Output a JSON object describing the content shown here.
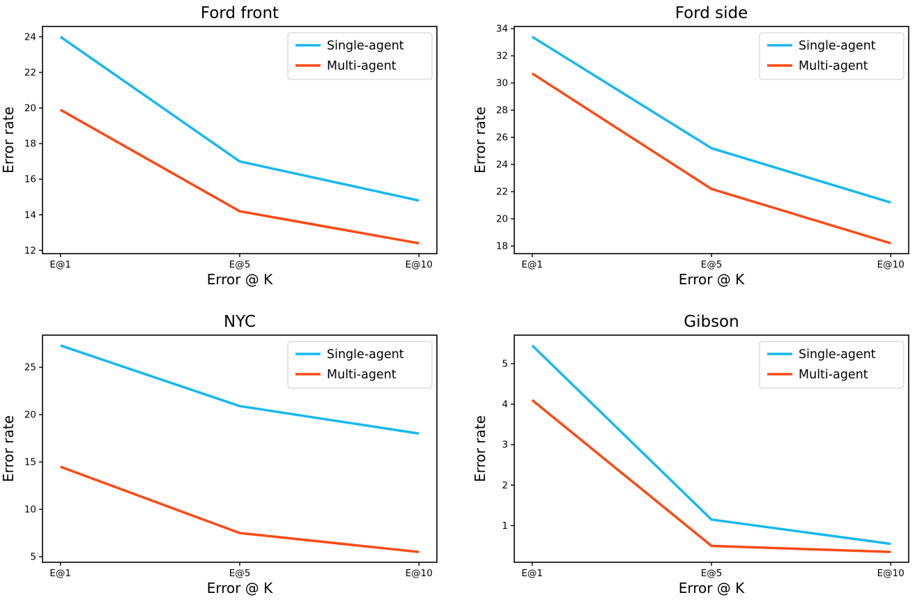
{
  "figure": {
    "background_color": "#ffffff",
    "text_color": "#000000",
    "spine_color": "#000000",
    "legend_border_color": "#d5d5d5",
    "legend_background_color": "#ffffff"
  },
  "chart_data": [
    {
      "type": "line",
      "title": "Ford front",
      "xlabel": "Error @ K",
      "ylabel": "Error rate",
      "categories": [
        "E@1",
        "E@5",
        "E@10"
      ],
      "yticks": [
        12,
        14,
        16,
        18,
        20,
        22,
        24
      ],
      "grid": false,
      "legend_position": "upper right",
      "series": [
        {
          "name": "Single-agent",
          "color": "#17B8EC",
          "values": [
            24.0,
            17.0,
            14.8
          ]
        },
        {
          "name": "Multi-agent",
          "color": "#FA4A15",
          "values": [
            19.9,
            14.2,
            12.4
          ]
        }
      ]
    },
    {
      "type": "line",
      "title": "Ford side",
      "xlabel": "Error @ K",
      "ylabel": "Error rate",
      "categories": [
        "E@1",
        "E@5",
        "E@10"
      ],
      "yticks": [
        18,
        20,
        22,
        24,
        26,
        28,
        30,
        32,
        34
      ],
      "grid": false,
      "legend_position": "upper right",
      "series": [
        {
          "name": "Single-agent",
          "color": "#17B8EC",
          "values": [
            33.4,
            25.2,
            21.2
          ]
        },
        {
          "name": "Multi-agent",
          "color": "#FA4A15",
          "values": [
            30.7,
            22.2,
            18.2
          ]
        }
      ]
    },
    {
      "type": "line",
      "title": "NYC",
      "xlabel": "Error @ K",
      "ylabel": "Error rate",
      "categories": [
        "E@1",
        "E@5",
        "E@10"
      ],
      "yticks": [
        5,
        10,
        15,
        20,
        25
      ],
      "grid": false,
      "legend_position": "upper right",
      "series": [
        {
          "name": "Single-agent",
          "color": "#17B8EC",
          "values": [
            27.3,
            20.9,
            18.0
          ]
        },
        {
          "name": "Multi-agent",
          "color": "#FA4A15",
          "values": [
            14.5,
            7.5,
            5.5
          ]
        }
      ]
    },
    {
      "type": "line",
      "title": "Gibson",
      "xlabel": "Error @ K",
      "ylabel": "Error rate",
      "categories": [
        "E@1",
        "E@5",
        "E@10"
      ],
      "yticks": [
        1,
        2,
        3,
        4,
        5
      ],
      "grid": false,
      "legend_position": "upper right",
      "series": [
        {
          "name": "Single-agent",
          "color": "#17B8EC",
          "values": [
            5.45,
            1.15,
            0.55
          ]
        },
        {
          "name": "Multi-agent",
          "color": "#FA4A15",
          "values": [
            4.1,
            0.5,
            0.35
          ]
        }
      ]
    }
  ]
}
